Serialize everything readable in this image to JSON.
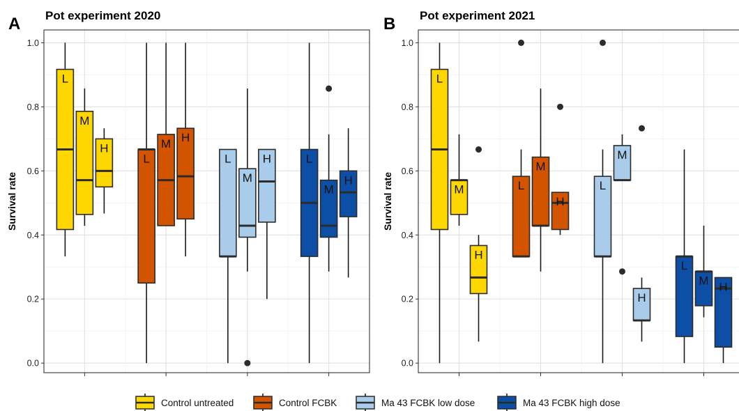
{
  "chart_data": [
    {
      "type": "box",
      "panel_letter": "A",
      "title": "Pot experiment 2020",
      "ylabel": "Survival rate",
      "ylim": [
        -0.03,
        1.04
      ],
      "yticks": [
        "0.0",
        "0.2",
        "0.4",
        "0.6",
        "0.8",
        "1.0"
      ],
      "grid": true,
      "groups": [
        "Control untreated",
        "Control FCBK",
        "Ma 43 FCBK low dose",
        "Ma 43 FCBK high dose"
      ],
      "boxes": [
        {
          "group": "Control untreated",
          "dose": "L",
          "min": 0.333,
          "q1": 0.417,
          "median": 0.667,
          "q3": 0.917,
          "max": 1.0,
          "outliers": []
        },
        {
          "group": "Control untreated",
          "dose": "M",
          "min": 0.429,
          "q1": 0.464,
          "median": 0.571,
          "q3": 0.786,
          "max": 0.857,
          "outliers": []
        },
        {
          "group": "Control untreated",
          "dose": "H",
          "min": 0.467,
          "q1": 0.55,
          "median": 0.6,
          "q3": 0.7,
          "max": 0.733,
          "outliers": []
        },
        {
          "group": "Control FCBK",
          "dose": "L",
          "min": 0.0,
          "q1": 0.25,
          "median": 0.667,
          "q3": 0.667,
          "max": 1.0,
          "outliers": []
        },
        {
          "group": "Control FCBK",
          "dose": "M",
          "min": 0.429,
          "q1": 0.429,
          "median": 0.571,
          "q3": 0.714,
          "max": 1.0,
          "outliers": []
        },
        {
          "group": "Control FCBK",
          "dose": "H",
          "min": 0.333,
          "q1": 0.45,
          "median": 0.583,
          "q3": 0.733,
          "max": 1.0,
          "outliers": []
        },
        {
          "group": "Ma 43 FCBK low dose",
          "dose": "L",
          "min": 0.0,
          "q1": 0.333,
          "median": 0.333,
          "q3": 0.667,
          "max": 0.667,
          "outliers": []
        },
        {
          "group": "Ma 43 FCBK low dose",
          "dose": "M",
          "min": 0.286,
          "q1": 0.393,
          "median": 0.429,
          "q3": 0.607,
          "max": 0.857,
          "outliers": [
            0.0
          ]
        },
        {
          "group": "Ma 43 FCBK low dose",
          "dose": "H",
          "min": 0.2,
          "q1": 0.44,
          "median": 0.567,
          "q3": 0.667,
          "max": 0.667,
          "outliers": []
        },
        {
          "group": "Ma 43 FCBK high dose",
          "dose": "L",
          "min": 0.0,
          "q1": 0.333,
          "median": 0.5,
          "q3": 0.667,
          "max": 1.0,
          "outliers": []
        },
        {
          "group": "Ma 43 FCBK high dose",
          "dose": "M",
          "min": 0.286,
          "q1": 0.393,
          "median": 0.429,
          "q3": 0.571,
          "max": 0.714,
          "outliers": [
            0.857
          ]
        },
        {
          "group": "Ma 43 FCBK high dose",
          "dose": "H",
          "min": 0.267,
          "q1": 0.457,
          "median": 0.533,
          "q3": 0.6,
          "max": 0.733,
          "outliers": []
        }
      ]
    },
    {
      "type": "box",
      "panel_letter": "B",
      "title": "Pot experiment 2021",
      "ylabel": "Survival rate",
      "ylim": [
        -0.03,
        1.04
      ],
      "yticks": [
        "0.0",
        "0.2",
        "0.4",
        "0.6",
        "0.8",
        "1.0"
      ],
      "grid": true,
      "groups": [
        "Control untreated",
        "Control FCBK",
        "Ma 43 FCBK low dose",
        "Ma 43 FCBK high dose"
      ],
      "boxes": [
        {
          "group": "Control untreated",
          "dose": "L",
          "min": 0.0,
          "q1": 0.417,
          "median": 0.667,
          "q3": 0.917,
          "max": 1.0,
          "outliers": []
        },
        {
          "group": "Control untreated",
          "dose": "M",
          "min": 0.429,
          "q1": 0.464,
          "median": 0.571,
          "q3": 0.571,
          "max": 0.714,
          "outliers": []
        },
        {
          "group": "Control untreated",
          "dose": "H",
          "min": 0.067,
          "q1": 0.217,
          "median": 0.267,
          "q3": 0.367,
          "max": 0.4,
          "outliers": [
            0.667
          ]
        },
        {
          "group": "Control FCBK",
          "dose": "L",
          "min": 0.333,
          "q1": 0.333,
          "median": 0.333,
          "q3": 0.583,
          "max": 0.667,
          "outliers": [
            1.0
          ]
        },
        {
          "group": "Control FCBK",
          "dose": "M",
          "min": 0.286,
          "q1": 0.429,
          "median": 0.429,
          "q3": 0.643,
          "max": 0.857,
          "outliers": []
        },
        {
          "group": "Control FCBK",
          "dose": "H",
          "min": 0.4,
          "q1": 0.417,
          "median": 0.5,
          "q3": 0.533,
          "max": 0.533,
          "outliers": [
            0.8
          ]
        },
        {
          "group": "Ma 43 FCBK low dose",
          "dose": "L",
          "min": 0.0,
          "q1": 0.333,
          "median": 0.333,
          "q3": 0.583,
          "max": 0.667,
          "outliers": [
            1.0
          ]
        },
        {
          "group": "Ma 43 FCBK low dose",
          "dose": "M",
          "min": 0.571,
          "q1": 0.571,
          "median": 0.571,
          "q3": 0.679,
          "max": 0.714,
          "outliers": [
            0.286
          ]
        },
        {
          "group": "Ma 43 FCBK low dose",
          "dose": "H",
          "min": 0.067,
          "q1": 0.133,
          "median": 0.133,
          "q3": 0.233,
          "max": 0.267,
          "outliers": [
            0.733
          ]
        },
        {
          "group": "Ma 43 FCBK high dose",
          "dose": "L",
          "min": 0.0,
          "q1": 0.083,
          "median": 0.333,
          "q3": 0.333,
          "max": 0.667,
          "outliers": []
        },
        {
          "group": "Ma 43 FCBK high dose",
          "dose": "M",
          "min": 0.143,
          "q1": 0.179,
          "median": 0.286,
          "q3": 0.286,
          "max": 0.429,
          "outliers": []
        },
        {
          "group": "Ma 43 FCBK high dose",
          "dose": "H",
          "min": 0.0,
          "q1": 0.05,
          "median": 0.233,
          "q3": 0.267,
          "max": 0.267,
          "outliers": []
        }
      ]
    }
  ],
  "legend": {
    "placement": "bottom",
    "items": [
      {
        "label": "Control untreated",
        "color": "#FFD700"
      },
      {
        "label": "Control FCBK",
        "color": "#D35400"
      },
      {
        "label": "Ma 43 FCBK low dose",
        "color": "#A9CCEA"
      },
      {
        "label": "Ma 43 FCBK high dose",
        "color": "#0D4FA6"
      }
    ]
  },
  "colors": {
    "Control untreated": "#FFD700",
    "Control FCBK": "#D35400",
    "Ma 43 FCBK low dose": "#A9CCEA",
    "Ma 43 FCBK high dose": "#0D4FA6",
    "outline": "#2b2b2b",
    "grid": "#e0e0e0"
  }
}
